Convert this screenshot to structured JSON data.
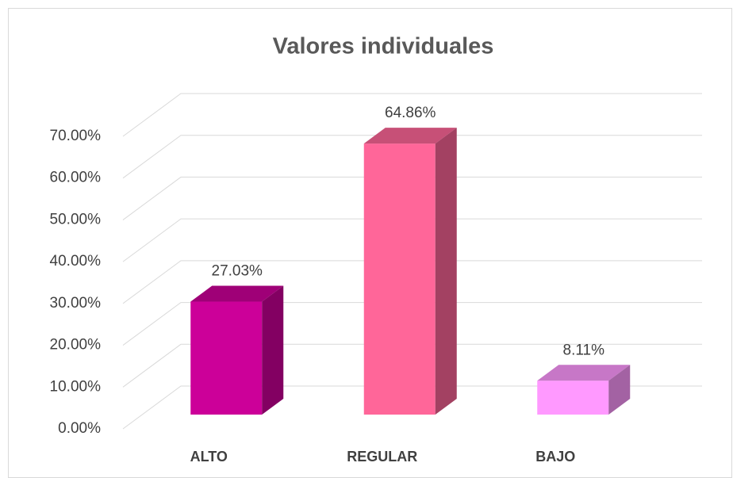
{
  "chart_data": {
    "type": "bar3d",
    "title": "Valores individuales",
    "categories": [
      "ALTO",
      "REGULAR",
      "BAJO"
    ],
    "values": [
      27.03,
      64.86,
      8.11
    ],
    "value_labels": [
      "27.03%",
      "64.86%",
      "8.11%"
    ],
    "colors": [
      "#cc0099",
      "#ff6699",
      "#ff99ff"
    ],
    "ylim": [
      0,
      70
    ],
    "yticks": [
      {
        "value": 0,
        "label": "0.00%"
      },
      {
        "value": 10,
        "label": "10.00%"
      },
      {
        "value": 20,
        "label": "20.00%"
      },
      {
        "value": 30,
        "label": "30.00%"
      },
      {
        "value": 40,
        "label": "40.00%"
      },
      {
        "value": 50,
        "label": "50.00%"
      },
      {
        "value": 60,
        "label": "60.00%"
      },
      {
        "value": 70,
        "label": "70.00%"
      }
    ],
    "grid": true
  }
}
